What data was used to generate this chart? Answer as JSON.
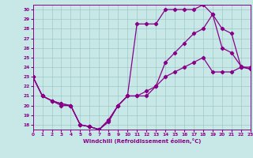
{
  "xlabel": "Windchill (Refroidissement éolien,°C)",
  "bg_color": "#c8e8e8",
  "grid_color": "#a0c8c8",
  "line_color": "#880088",
  "xmin": 0,
  "xmax": 23,
  "ymin": 17.5,
  "ymax": 30.5,
  "yticks": [
    18,
    19,
    20,
    21,
    22,
    23,
    24,
    25,
    26,
    27,
    28,
    29,
    30
  ],
  "xticks": [
    0,
    1,
    2,
    3,
    4,
    5,
    6,
    7,
    8,
    9,
    10,
    11,
    12,
    13,
    14,
    15,
    16,
    17,
    18,
    19,
    20,
    21,
    22,
    23
  ],
  "line1_x": [
    0,
    1,
    2,
    3,
    4,
    5,
    6,
    7,
    8,
    9,
    10,
    11,
    12,
    13,
    14,
    15,
    16,
    17,
    18,
    19,
    20,
    21,
    22,
    23
  ],
  "line1_y": [
    23,
    21,
    20.5,
    20,
    20,
    18,
    17.8,
    17.5,
    18.3,
    20,
    21,
    28.5,
    28.5,
    28.5,
    30,
    30,
    30,
    30,
    30.5,
    29.5,
    26,
    25.5,
    24.1,
    23.8
  ],
  "line2_x": [
    0,
    1,
    2,
    3,
    4,
    5,
    6,
    7,
    8,
    9,
    10,
    11,
    12,
    13,
    14,
    15,
    16,
    17,
    18,
    19,
    20,
    21,
    22,
    23
  ],
  "line2_y": [
    23,
    21,
    20.5,
    20.2,
    20,
    18,
    17.8,
    17.5,
    18.5,
    20,
    21,
    21,
    21,
    22,
    24.5,
    25.5,
    26.5,
    27.5,
    28,
    29.5,
    28,
    27.5,
    24,
    23.8
  ],
  "line3_x": [
    0,
    1,
    2,
    3,
    4,
    5,
    6,
    7,
    8,
    9,
    10,
    11,
    12,
    13,
    14,
    15,
    16,
    17,
    18,
    19,
    20,
    21,
    22,
    23
  ],
  "line3_y": [
    23,
    21,
    20.5,
    20.2,
    20,
    18,
    17.8,
    17.5,
    18.5,
    20,
    21,
    21,
    21.5,
    22,
    23,
    23.5,
    24,
    24.5,
    25,
    23.5,
    23.5,
    23.5,
    24,
    24
  ]
}
